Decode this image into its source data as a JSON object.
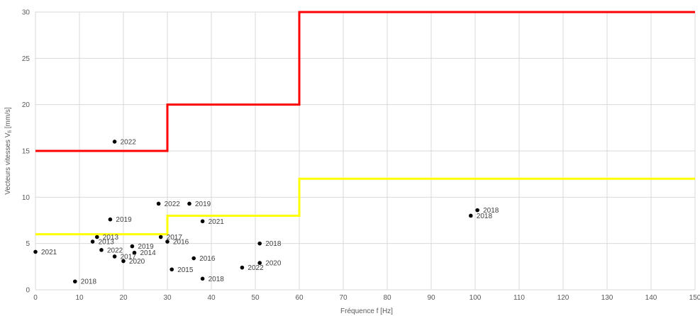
{
  "chart_data": {
    "type": "scatter",
    "xlabel": "Fréquence f [Hz]",
    "ylabel_main": "Vecteurs vitesses V",
    "ylabel_sub": "fi",
    "ylabel_unit": " [mm/s]",
    "xlim": [
      0,
      150
    ],
    "ylim": [
      0,
      30
    ],
    "x_ticks": [
      0,
      10,
      20,
      30,
      40,
      50,
      60,
      70,
      80,
      90,
      100,
      110,
      120,
      130,
      140,
      150
    ],
    "y_ticks": [
      0,
      5,
      10,
      15,
      20,
      25,
      30
    ],
    "grid": true,
    "limit_lines": [
      {
        "color": "#ff0000",
        "points": [
          [
            0,
            15
          ],
          [
            30,
            15
          ],
          [
            30,
            20
          ],
          [
            60,
            20
          ],
          [
            60,
            30
          ],
          [
            150,
            30
          ]
        ]
      },
      {
        "color": "#ffff00",
        "points": [
          [
            0,
            6
          ],
          [
            30,
            6
          ],
          [
            30,
            8
          ],
          [
            60,
            8
          ],
          [
            60,
            12
          ],
          [
            150,
            12
          ]
        ]
      }
    ],
    "points": [
      {
        "x": 18,
        "y": 16,
        "label": "2022"
      },
      {
        "x": 28,
        "y": 9.3,
        "label": "2022"
      },
      {
        "x": 35,
        "y": 9.3,
        "label": "2019"
      },
      {
        "x": 17,
        "y": 7.6,
        "label": "2019"
      },
      {
        "x": 38,
        "y": 7.4,
        "label": "2021"
      },
      {
        "x": 14,
        "y": 5.7,
        "label": "2013"
      },
      {
        "x": 28.5,
        "y": 5.7,
        "label": "2017"
      },
      {
        "x": 13,
        "y": 5.2,
        "label": "2013"
      },
      {
        "x": 30,
        "y": 5.2,
        "label": "2016"
      },
      {
        "x": 0,
        "y": 4.1,
        "label": "2021"
      },
      {
        "x": 15,
        "y": 4.3,
        "label": "2022"
      },
      {
        "x": 22,
        "y": 4.7,
        "label": "2019"
      },
      {
        "x": 22.5,
        "y": 4.0,
        "label": "2014"
      },
      {
        "x": 18,
        "y": 3.6,
        "label": "2017"
      },
      {
        "x": 20,
        "y": 3.1,
        "label": "2020"
      },
      {
        "x": 51,
        "y": 5.0,
        "label": "2018"
      },
      {
        "x": 36,
        "y": 3.4,
        "label": "2016"
      },
      {
        "x": 51,
        "y": 2.9,
        "label": "2020"
      },
      {
        "x": 47,
        "y": 2.4,
        "label": "2022"
      },
      {
        "x": 31,
        "y": 2.2,
        "label": "2015"
      },
      {
        "x": 38,
        "y": 1.2,
        "label": "2018"
      },
      {
        "x": 9,
        "y": 0.9,
        "label": "2018"
      },
      {
        "x": 100.5,
        "y": 8.6,
        "label": "2018"
      },
      {
        "x": 99,
        "y": 8.0,
        "label": "2018"
      }
    ]
  }
}
